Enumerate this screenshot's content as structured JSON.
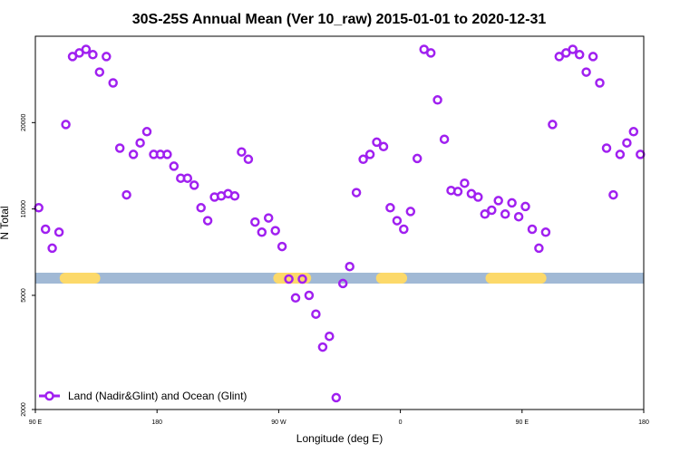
{
  "chart_data": {
    "type": "scatter",
    "title": "30S-25S Annual Mean (Ver 10_raw)   2015-01-01 to 2020-12-31",
    "xlabel": "Longitude (deg E)",
    "ylabel": "N Total",
    "x_ticks": [
      {
        "value": 90,
        "label": "90 E"
      },
      {
        "value": 180,
        "label": "180"
      },
      {
        "value": 270,
        "label": "90 W"
      },
      {
        "value": 360,
        "label": "0"
      },
      {
        "value": 450,
        "label": "90 E"
      },
      {
        "value": 540,
        "label": "180"
      }
    ],
    "xlim": [
      90,
      540
    ],
    "y_scale": "log",
    "y_ticks": [
      2000,
      5000,
      10000,
      20000
    ],
    "ylim": [
      2000,
      40000
    ],
    "grid": false,
    "legend": {
      "position": "bottom-left",
      "entries": [
        "Land (Nadir&Glint) and Ocean (Glint)"
      ]
    },
    "series": [
      {
        "name": "Land (Nadir&Glint) and Ocean (Glint)",
        "color": "#a020f0",
        "marker": "circle-open",
        "x": [
          92.5,
          97.5,
          102.5,
          107.5,
          112.5,
          117.5,
          122.5,
          127.5,
          132.5,
          137.5,
          142.5,
          147.5,
          152.5,
          157.5,
          162.5,
          167.5,
          172.5,
          177.5,
          182.5,
          187.5,
          192.5,
          197.5,
          202.5,
          207.5,
          212.5,
          217.5,
          222.5,
          227.5,
          232.5,
          237.5,
          242.5,
          247.5,
          252.5,
          257.5,
          262.5,
          267.5,
          272.5,
          277.5,
          282.5,
          287.5,
          292.5,
          297.5,
          302.5,
          307.5,
          312.5,
          317.5,
          322.5,
          327.5,
          332.5,
          337.5,
          342.5,
          347.5,
          352.5,
          357.5,
          362.5,
          367.5,
          372.5,
          377.5,
          382.5,
          387.5,
          392.5,
          397.5,
          402.5,
          407.5,
          412.5,
          417.5,
          422.5,
          427.5,
          432.5,
          437.5,
          442.5,
          447.5,
          452.5,
          457.5,
          462.5,
          467.5,
          472.5,
          477.5,
          482.5,
          487.5,
          492.5,
          497.5,
          502.5,
          507.5,
          512.5,
          517.5,
          522.5,
          527.5,
          532.5,
          537.5
        ],
        "y": [
          10100,
          8500,
          7300,
          8300,
          19700,
          34000,
          35000,
          36000,
          34500,
          30000,
          34000,
          27500,
          16300,
          11200,
          15500,
          17000,
          18600,
          15500,
          15500,
          15500,
          14100,
          12800,
          12800,
          12100,
          10100,
          9100,
          11000,
          11100,
          11300,
          11100,
          15800,
          14900,
          9000,
          8300,
          9300,
          8400,
          7400,
          5700,
          4900,
          5700,
          5000,
          4300,
          3300,
          3600,
          2200,
          5500,
          6300,
          11400,
          14900,
          15500,
          17100,
          16500,
          10100,
          9100,
          8500,
          9800,
          15000,
          36000,
          35000,
          24000,
          17500,
          11600,
          11500,
          12300,
          11300,
          11000,
          9600,
          9900,
          10700,
          9600,
          10500,
          9400,
          10200,
          8500,
          7300,
          8300,
          19700,
          34000,
          35000,
          36000,
          34500,
          30000,
          34000,
          27500,
          16300,
          11200,
          15500,
          17000,
          18600,
          15500
        ]
      }
    ],
    "surface_strip": {
      "colors": {
        "ocean": "#a1b9d5",
        "land": "#fcd96a"
      },
      "land_intervals": [
        [
          112,
          134
        ],
        [
          270,
          290
        ],
        [
          346,
          361
        ],
        [
          427,
          464
        ]
      ]
    }
  }
}
